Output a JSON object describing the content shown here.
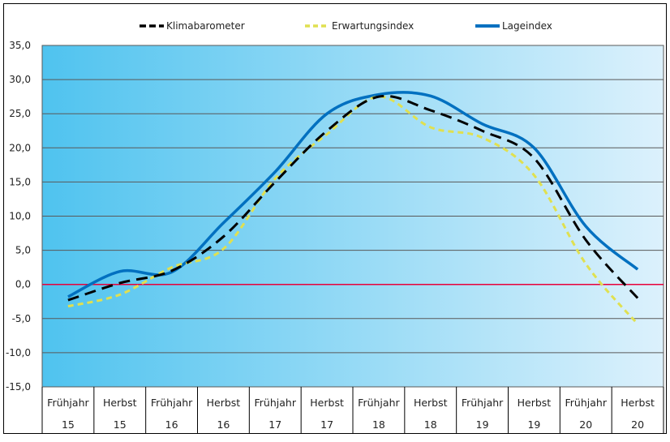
{
  "chart_data": {
    "type": "line",
    "title": "",
    "xlabel": "",
    "ylabel": "",
    "ylim": [
      -15,
      35
    ],
    "ytick_step": 5,
    "ytick_labels": [
      "35,0",
      "30,0",
      "25,0",
      "20,0",
      "15,0",
      "10,0",
      "5,0",
      "0,0",
      "-5,0",
      "-10,0",
      "-15,0"
    ],
    "grid": true,
    "legend_position": "top",
    "categories": [
      {
        "season": "Frühjahr",
        "year": "15"
      },
      {
        "season": "Herbst",
        "year": "15"
      },
      {
        "season": "Frühjahr",
        "year": "16"
      },
      {
        "season": "Herbst",
        "year": "16"
      },
      {
        "season": "Frühjahr",
        "year": "17"
      },
      {
        "season": "Herbst",
        "year": "17"
      },
      {
        "season": "Frühjahr",
        "year": "18"
      },
      {
        "season": "Herbst",
        "year": "18"
      },
      {
        "season": "Frühjahr",
        "year": "19"
      },
      {
        "season": "Herbst",
        "year": "19"
      },
      {
        "season": "Frühjahr",
        "year": "20"
      },
      {
        "season": "Herbst",
        "year": "20"
      }
    ],
    "series": [
      {
        "name": "Klimabarometer",
        "color": "#000000",
        "style": "dashed",
        "values": [
          -2.3,
          0.2,
          2.0,
          7.0,
          15.0,
          22.5,
          27.5,
          25.5,
          22.5,
          18.5,
          6.5,
          -2.0
        ]
      },
      {
        "name": "Erwartungsindex",
        "color": "#e0e050",
        "style": "dashed",
        "values": [
          -3.2,
          -1.5,
          2.5,
          5.2,
          15.5,
          22.0,
          27.5,
          23.0,
          21.5,
          16.0,
          3.0,
          -5.8
        ]
      },
      {
        "name": "Lageindex",
        "color": "#0070c0",
        "style": "solid",
        "values": [
          -1.8,
          1.9,
          1.8,
          9.0,
          16.5,
          25.0,
          27.8,
          27.6,
          23.5,
          20.0,
          8.5,
          2.2
        ]
      }
    ],
    "reference_line": {
      "value": 0,
      "color": "#e8003a"
    }
  },
  "colors": {
    "plot_bg_left": "#4fc3ef",
    "plot_bg_right": "#dcf1fc",
    "gridline": "#595959",
    "border": "#000000"
  }
}
